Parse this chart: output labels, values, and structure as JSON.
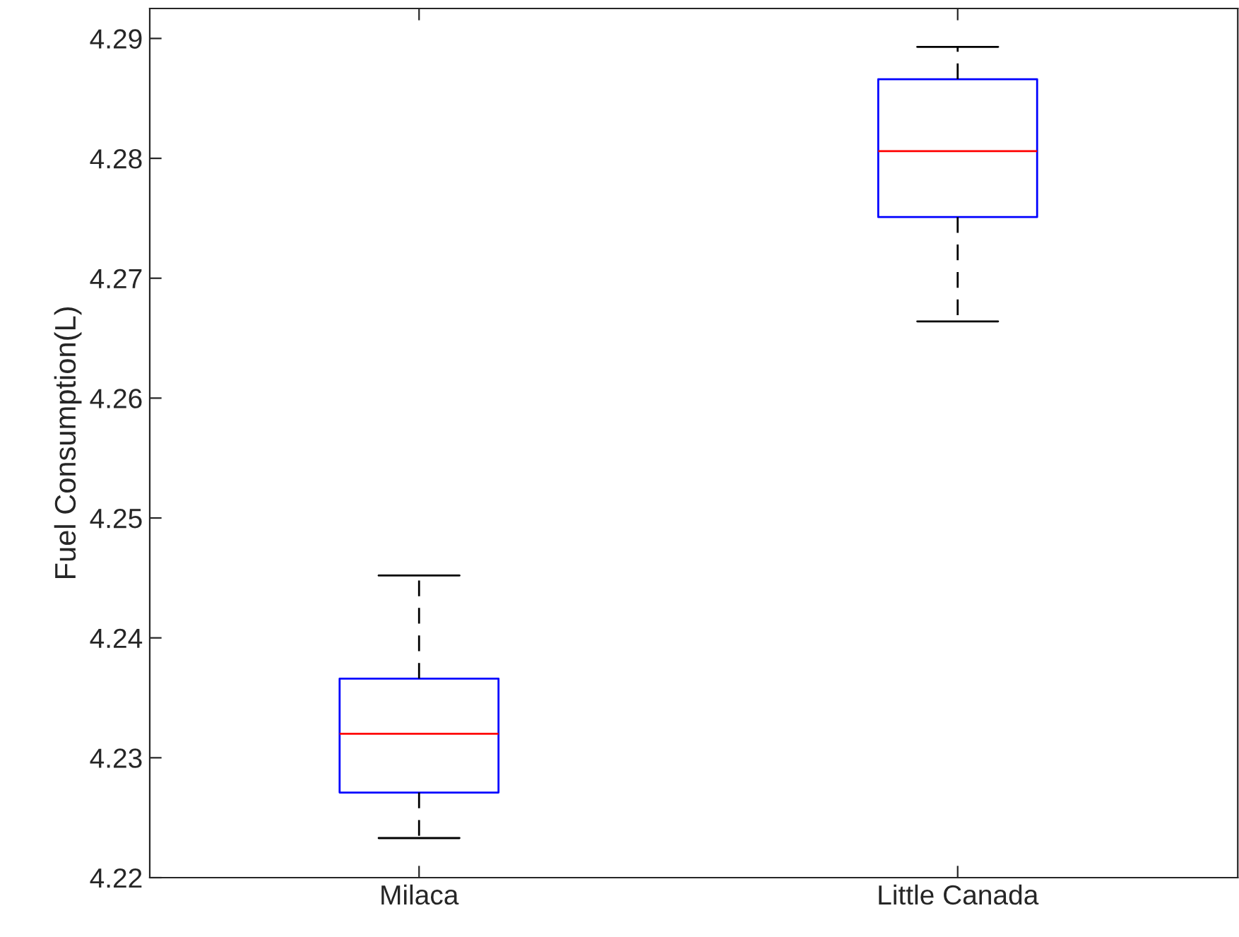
{
  "chart_data": {
    "type": "box",
    "ylabel": "Fuel Consumption(L)",
    "categories": [
      "Milaca",
      "Little Canada"
    ],
    "boxes": [
      {
        "low": 4.2233,
        "q1": 4.2271,
        "median": 4.232,
        "q3": 4.2366,
        "high": 4.2452
      },
      {
        "low": 4.2664,
        "q1": 4.2751,
        "median": 4.2806,
        "q3": 4.2866,
        "high": 4.2893
      }
    ],
    "color": "#0000ff",
    "ylim": [
      4.22,
      4.2925
    ],
    "yticks": [
      4.22,
      4.23,
      4.24,
      4.25,
      4.26,
      4.27,
      4.28,
      4.29
    ],
    "grid": false
  }
}
